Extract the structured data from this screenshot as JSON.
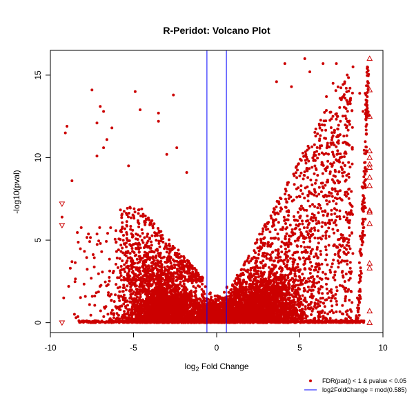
{
  "chart_data": {
    "type": "scatter",
    "title": "R-Peridot: Volcano Plot",
    "xlabel_main": "log",
    "xlabel_sub": "2",
    "xlabel_rest": " Fold Change",
    "ylabel": "-log10(pval)",
    "xlim": [
      -10,
      10
    ],
    "ylim": [
      -0.6,
      16.5
    ],
    "x_ticks": [
      -10,
      -5,
      0,
      5,
      10
    ],
    "y_ticks": [
      0,
      5,
      10,
      15
    ],
    "threshold_lines": [
      -0.585,
      0.585
    ],
    "point_color": "#cc0000",
    "line_color": "#0000ff",
    "legend": [
      {
        "label": "FDR(padj) < 1 & pvalue < 0.05",
        "marker": "point"
      },
      {
        "label": "log2FoldChange = mod(0.585)",
        "marker": "line"
      }
    ],
    "outlier_triangles_up": [
      [
        9.2,
        16.0
      ],
      [
        9.2,
        14.1
      ],
      [
        9.2,
        12.5
      ],
      [
        9.2,
        10.4
      ],
      [
        9.2,
        10.0
      ],
      [
        9.2,
        9.6
      ],
      [
        9.2,
        9.4
      ],
      [
        9.2,
        8.8
      ],
      [
        9.2,
        8.3
      ],
      [
        9.2,
        6.8
      ],
      [
        9.2,
        6.7
      ],
      [
        9.2,
        6.0
      ],
      [
        9.2,
        3.6
      ],
      [
        9.2,
        3.3
      ],
      [
        9.2,
        0.7
      ],
      [
        9.2,
        0.0
      ]
    ],
    "outlier_triangles_down": [
      [
        -9.3,
        7.2
      ],
      [
        -9.3,
        5.9
      ],
      [
        -9.3,
        0.0
      ]
    ],
    "notable_points": [
      [
        -7.5,
        14.1
      ],
      [
        -4.9,
        14.0
      ],
      [
        -4.6,
        12.9
      ],
      [
        -3.5,
        12.7
      ],
      [
        -3.5,
        12.2
      ],
      [
        -2.6,
        13.8
      ],
      [
        -7.0,
        13.1
      ],
      [
        -6.8,
        12.8
      ],
      [
        -7.2,
        12.1
      ],
      [
        -6.3,
        11.8
      ],
      [
        -6.6,
        11.1
      ],
      [
        -9.0,
        11.9
      ],
      [
        -9.1,
        11.5
      ],
      [
        -6.8,
        10.6
      ],
      [
        -7.2,
        10.1
      ],
      [
        -2.4,
        10.6
      ],
      [
        -3.0,
        10.2
      ],
      [
        -5.3,
        9.5
      ],
      [
        -1.8,
        9.1
      ],
      [
        -8.7,
        8.6
      ],
      [
        -9.3,
        6.4
      ],
      [
        -8.7,
        3.7
      ],
      [
        -8.8,
        3.3
      ],
      [
        -8.9,
        2.2
      ],
      [
        5.3,
        16.0
      ],
      [
        4.1,
        15.7
      ],
      [
        6.4,
        15.7
      ],
      [
        7.2,
        15.7
      ],
      [
        8.2,
        15.5
      ],
      [
        5.6,
        15.2
      ],
      [
        3.6,
        14.6
      ],
      [
        4.5,
        14.3
      ],
      [
        7.0,
        14.5
      ],
      [
        6.6,
        13.7
      ],
      [
        8.6,
        13.9
      ],
      [
        8.8,
        12.8
      ]
    ]
  }
}
